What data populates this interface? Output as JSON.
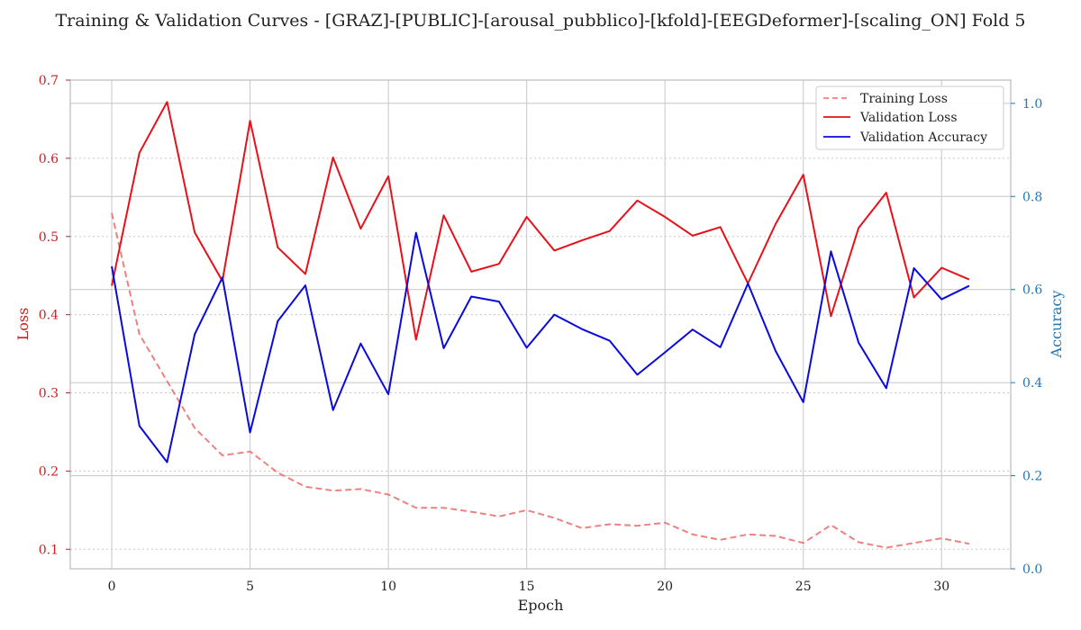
{
  "chart_data": {
    "type": "line",
    "title": "Training & Validation Curves - [GRAZ]-[PUBLIC]-[arousal_pubblico]-[kfold]-[EEGDeformer]-[scaling_ON] Fold 5",
    "xlabel": "Epoch",
    "ylabel_left": "Loss",
    "ylabel_right": "Accuracy",
    "xlim": [
      -1.5,
      32.5
    ],
    "ylim_left": [
      0.075,
      0.7
    ],
    "ylim_right": [
      0.0,
      1.05
    ],
    "x_ticks": [
      0,
      5,
      10,
      15,
      20,
      25,
      30
    ],
    "y_left_ticks": [
      0.1,
      0.2,
      0.3,
      0.4,
      0.5,
      0.6,
      0.7
    ],
    "y_right_ticks": [
      0.0,
      0.2,
      0.4,
      0.6,
      0.8,
      1.0
    ],
    "grid": true,
    "legend_position": "top-right",
    "x": [
      0,
      1,
      2,
      3,
      4,
      5,
      6,
      7,
      8,
      9,
      10,
      11,
      12,
      13,
      14,
      15,
      16,
      17,
      18,
      19,
      20,
      21,
      22,
      23,
      24,
      25,
      26,
      27,
      28,
      29,
      30,
      31
    ],
    "series": [
      {
        "name": "Training Loss",
        "axis": "left",
        "style": "dashed",
        "color": "#f08080",
        "values": [
          0.53,
          0.375,
          0.315,
          0.255,
          0.22,
          0.225,
          0.198,
          0.18,
          0.175,
          0.177,
          0.17,
          0.153,
          0.153,
          0.148,
          0.142,
          0.15,
          0.14,
          0.127,
          0.132,
          0.13,
          0.134,
          0.119,
          0.112,
          0.119,
          0.117,
          0.108,
          0.131,
          0.109,
          0.102,
          0.108,
          0.114,
          0.107
        ]
      },
      {
        "name": "Validation Loss",
        "axis": "left",
        "style": "solid",
        "color": "#e8101a",
        "values": [
          0.437,
          0.607,
          0.672,
          0.505,
          0.443,
          0.648,
          0.486,
          0.452,
          0.601,
          0.51,
          0.577,
          0.368,
          0.527,
          0.455,
          0.465,
          0.525,
          0.482,
          0.495,
          0.507,
          0.546,
          0.525,
          0.501,
          0.512,
          0.44,
          0.516,
          0.579,
          0.398,
          0.511,
          0.556,
          0.422,
          0.46,
          0.445
        ]
      },
      {
        "name": "Validation Accuracy",
        "axis": "right",
        "style": "solid",
        "color": "#0a0adc",
        "values": [
          0.65,
          0.307,
          0.229,
          0.504,
          0.626,
          0.293,
          0.532,
          0.609,
          0.341,
          0.484,
          0.375,
          0.722,
          0.474,
          0.585,
          0.574,
          0.475,
          0.546,
          0.515,
          0.49,
          0.417,
          0.465,
          0.514,
          0.476,
          0.613,
          0.468,
          0.358,
          0.682,
          0.486,
          0.388,
          0.646,
          0.579,
          0.608
        ]
      }
    ]
  }
}
